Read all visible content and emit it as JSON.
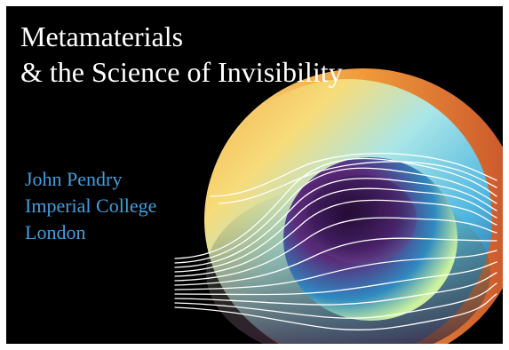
{
  "slide": {
    "title_line1": "Metamaterials",
    "title_line2": "& the Science of Invisibility",
    "author_name": "John Pendry",
    "author_affiliation_line1": "Imperial College",
    "author_affiliation_line2": "London"
  },
  "colors": {
    "background": "#000000",
    "title_text": "#ffffff",
    "author_text": "#3f9fe0",
    "field_lines": "#ffffff"
  },
  "illustration": {
    "name": "invisibility-cloak-sphere",
    "description_icon": "cloak-sphere-icon"
  }
}
